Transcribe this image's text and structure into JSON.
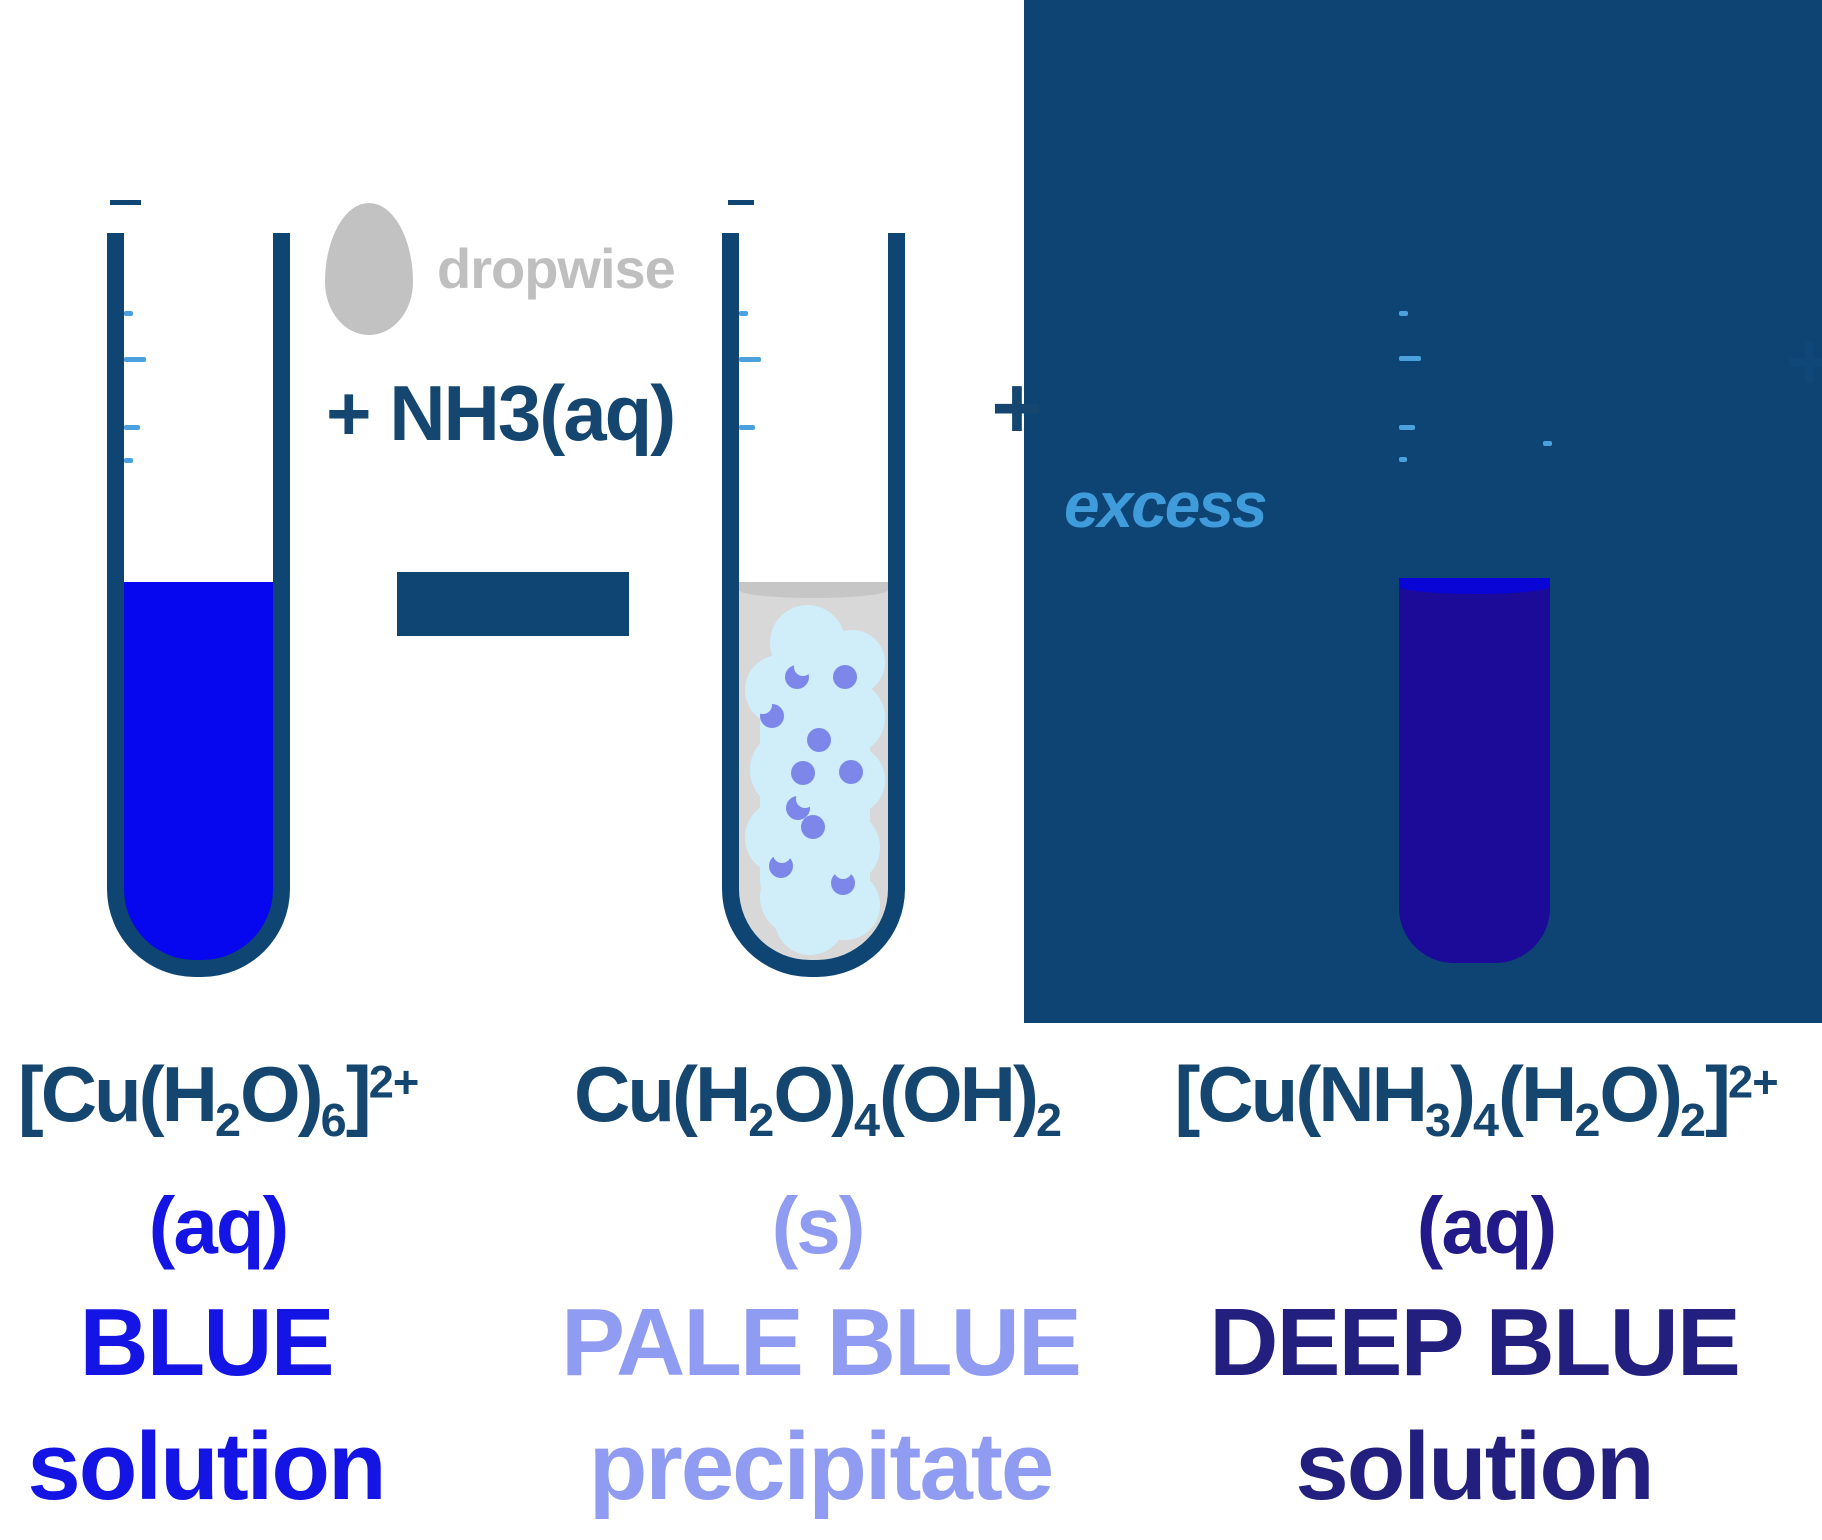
{
  "colors": {
    "tube_outline": "#0E4573",
    "panel_bg": "#0D4474",
    "blue_solution": "#0606EF",
    "deep_blue_solution": "#1C0A99",
    "deep_blue_meniscus": "#0805D6",
    "gray_liquid": "#D8D8D8",
    "gray_meniscus": "#C6C6C6",
    "precipitate_fill": "#CFEEFA",
    "precipitate_dots": "#7C87E9",
    "blue_text": "#1414E4",
    "pale_blue_text": "#8F9CF2",
    "deep_blue_text": "#221F7E",
    "right_aq_text": "#221A88",
    "steel_text": "#15466F",
    "excess_text": "#3F9BDA",
    "drop_gray": "#C2C2C2",
    "dropwise_text": "#BFBFBF",
    "tick_blue": "#4BA0DE"
  },
  "icons": {
    "drop": "drop-icon"
  },
  "reaction": {
    "dropwise_label": "dropwise",
    "nh3": [
      {
        "t": "n",
        "v": "+ NH"
      },
      {
        "t": "s",
        "v": "3"
      },
      {
        "t": "n",
        "v": "(aq)"
      }
    ],
    "excess_label": "excess",
    "plus_sign": "+",
    "plus_sign_partial": "+"
  },
  "stages": [
    {
      "formula": [
        {
          "t": "n",
          "v": "[Cu(H"
        },
        {
          "t": "s",
          "v": "2"
        },
        {
          "t": "n",
          "v": "O)"
        },
        {
          "t": "s",
          "v": "6"
        },
        {
          "t": "n",
          "v": "]"
        },
        {
          "t": "u",
          "v": "2+"
        }
      ],
      "state": "(aq)",
      "line1": "BLUE",
      "line2": "solution"
    },
    {
      "formula": [
        {
          "t": "n",
          "v": "Cu(H"
        },
        {
          "t": "s",
          "v": "2"
        },
        {
          "t": "n",
          "v": "O)"
        },
        {
          "t": "s",
          "v": "4"
        },
        {
          "t": "n",
          "v": "(OH)"
        },
        {
          "t": "s",
          "v": "2"
        }
      ],
      "state": "(s)",
      "line1": "PALE BLUE",
      "line2": "precipitate"
    },
    {
      "formula": [
        {
          "t": "n",
          "v": "[Cu(NH"
        },
        {
          "t": "s",
          "v": "3"
        },
        {
          "t": "n",
          "v": ")"
        },
        {
          "t": "s",
          "v": "4"
        },
        {
          "t": "n",
          "v": "(H"
        },
        {
          "t": "s",
          "v": "2"
        },
        {
          "t": "n",
          "v": "O)"
        },
        {
          "t": "s",
          "v": "2"
        },
        {
          "t": "n",
          "v": "]"
        },
        {
          "t": "u",
          "v": "2+"
        }
      ],
      "state": "(aq)",
      "line1": "DEEP BLUE",
      "line2": "solution"
    }
  ]
}
